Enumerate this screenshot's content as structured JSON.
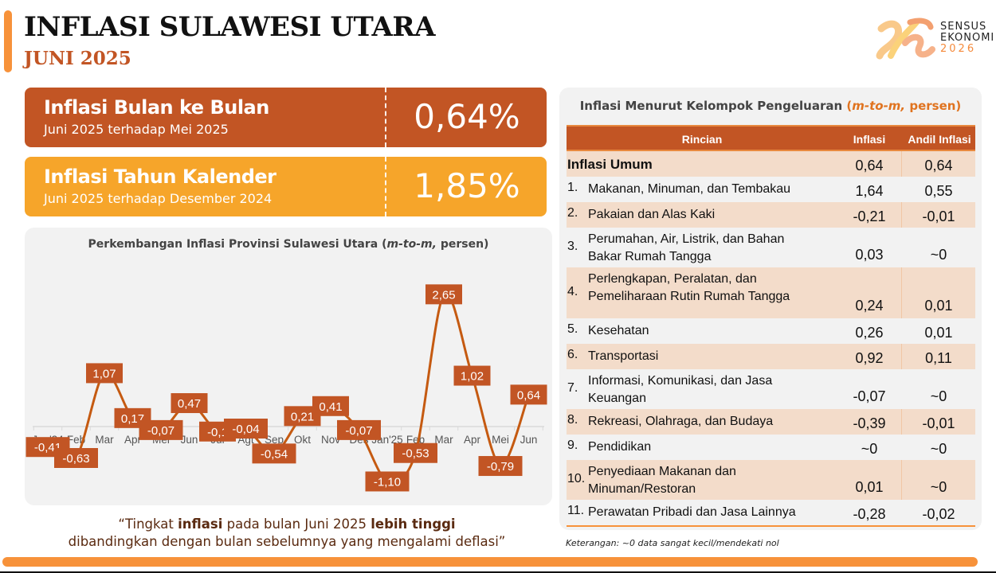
{
  "header": {
    "title": "INFLASI SULAWESI UTARA",
    "subtitle": "JUNI 2025"
  },
  "logo": {
    "line1": "SENSUS",
    "line2": "EKONOMI",
    "line3": "2026"
  },
  "kpis": [
    {
      "label": "Inflasi Bulan ke Bulan",
      "sub": "Juni 2025 terhadap Mei 2025",
      "value": "0,64%",
      "color": "#c25524"
    },
    {
      "label": "Inflasi Tahun Kalender",
      "sub": "Juni 2025 terhadap Desember 2024",
      "value": "1,85%",
      "color": "#f6a52a"
    }
  ],
  "chart_data": {
    "type": "line",
    "title": "Perkembangan Inflasi Provinsi Sulawesi Utara (m-to-m, persen)",
    "title_prefix": "Perkembangan Inflasi Provinsi Sulawesi Utara (",
    "title_italic": "m-to-m,",
    "title_suffix": " persen)",
    "categories": [
      "Jan'24",
      "Feb",
      "Mar",
      "Apr",
      "Mei",
      "Jun",
      "Jul",
      "Agt",
      "Sep",
      "Okt",
      "Nov",
      "Des",
      "Jan'25",
      "Feb",
      "Mar",
      "Apr",
      "Mei",
      "Jun"
    ],
    "values": [
      -0.41,
      -0.63,
      1.07,
      0.17,
      -0.07,
      0.47,
      -0.1,
      -0.04,
      -0.54,
      0.21,
      0.41,
      -0.07,
      -1.1,
      -0.53,
      2.65,
      1.02,
      -0.79,
      0.64
    ],
    "labels": [
      "-0,41",
      "-0,63",
      "1,07",
      "0,17",
      "-0,07",
      "0,47",
      "-0,1",
      "-0,04",
      "-0,54",
      "0,21",
      "0,41",
      "-0,07",
      "-1,10",
      "-0,53",
      "2,65",
      "1,02",
      "-0,79",
      "0,64"
    ],
    "xlabel": "",
    "ylabel": "",
    "line_color": "#c25524",
    "grid": false,
    "legend": "none"
  },
  "quote": {
    "open": "“Tingkat ",
    "b1": "inflasi",
    "mid": " pada bulan Juni 2025 ",
    "b2": "lebih tinggi",
    "line2": "dibandingkan dengan bulan sebelumnya yang mengalami deflasi”"
  },
  "table": {
    "title_prefix": "Inflasi Menurut Kelompok Pengeluaran ",
    "title_highlight_open": "(",
    "title_highlight_italic": "m-to-m,",
    "title_highlight_rest": " persen)",
    "headers": {
      "rincian": "Rincian",
      "inflasi": "Inflasi",
      "andil": "Andil Inflasi"
    },
    "total": {
      "name": "Inflasi Umum",
      "inflasi": "0,64",
      "andil": "0,64"
    },
    "rows": [
      {
        "num": "1.",
        "name": "Makanan, Minuman, dan Tembakau",
        "inflasi": "1,64",
        "andil": "0,55"
      },
      {
        "num": "2.",
        "name": "Pakaian dan Alas Kaki",
        "inflasi": "-0,21",
        "andil": "-0,01"
      },
      {
        "num": "3.",
        "name": "Perumahan, Air, Listrik, dan Bahan",
        "name2": "Bakar Rumah Tangga",
        "inflasi": "0,03",
        "andil": "~0"
      },
      {
        "num": "4.",
        "name": "Perlengkapan, Peralatan, dan",
        "name2": "Pemeliharaan Rutin Rumah Tangga",
        "inflasi": "0,24",
        "andil": "0,01"
      },
      {
        "num": "5.",
        "name": "Kesehatan",
        "inflasi": "0,26",
        "andil": "0,01"
      },
      {
        "num": "6.",
        "name": "Transportasi",
        "inflasi": "0,92",
        "andil": "0,11"
      },
      {
        "num": "7.",
        "name": "Informasi, Komunikasi, dan Jasa",
        "name2": "Keuangan",
        "inflasi": "-0,07",
        "andil": "~0"
      },
      {
        "num": "8.",
        "name": "Rekreasi, Olahraga, dan Budaya",
        "inflasi": "-0,39",
        "andil": "-0,01"
      },
      {
        "num": "9.",
        "name": "Pendidikan",
        "inflasi": "~0",
        "andil": "~0"
      },
      {
        "num": "10.",
        "name": "Penyediaan Makanan dan",
        "name2": "Minuman/Restoran",
        "inflasi": "0,01",
        "andil": "~0"
      },
      {
        "num": "11.",
        "name": "Perawatan Pribadi dan Jasa Lainnya",
        "inflasi": "-0,28",
        "andil": "-0,02"
      }
    ],
    "note": "Keterangan: ~0 data sangat kecil/mendekati nol"
  },
  "colors": {
    "primary": "#c25524",
    "secondary": "#f6a52a",
    "accent": "#f7923a",
    "row_shade": "#f3dcca",
    "card_bg": "#f2f2f2"
  }
}
